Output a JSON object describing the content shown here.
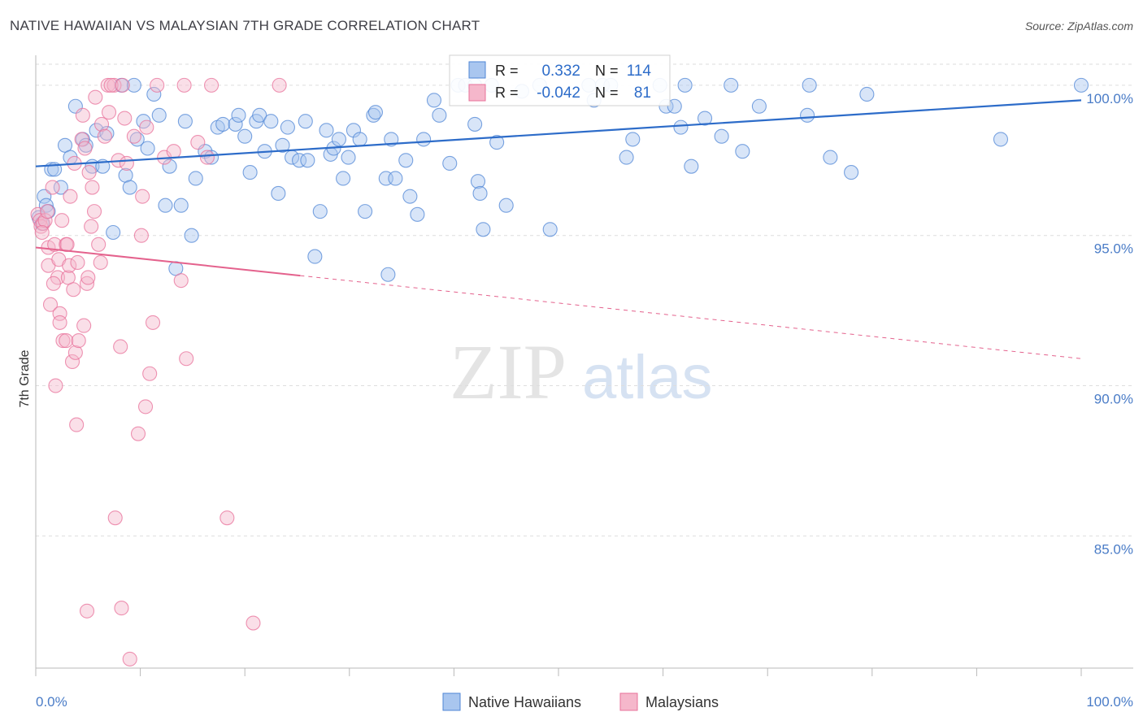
{
  "title": "NATIVE HAWAIIAN VS MALAYSIAN 7TH GRADE CORRELATION CHART",
  "source": "Source: ZipAtlas.com",
  "watermark": {
    "zip": "ZIP",
    "atlas": "atlas"
  },
  "colors": {
    "blue": "#4f86d6",
    "blue_fill": "#a9c6ef",
    "blue_line": "#2d6cc9",
    "pink": "#e8709a",
    "pink_fill": "#f5b7cb",
    "pink_line": "#e4628d",
    "axis_label": "#4a7cc7",
    "grid": "#dedede"
  },
  "legend_box": {
    "rows": [
      {
        "r_label": "R =",
        "r_value": "0.332",
        "n_label": "N =",
        "n_value": "114",
        "series": "blue"
      },
      {
        "r_label": "R =",
        "r_value": "-0.042",
        "n_label": "N =",
        "n_value": "81",
        "series": "pink"
      }
    ]
  },
  "bottom_legend": [
    {
      "label": "Native Hawaiians",
      "series": "blue"
    },
    {
      "label": "Malaysians",
      "series": "pink"
    }
  ],
  "chart_data": {
    "type": "scatter",
    "title": "NATIVE HAWAIIAN VS MALAYSIAN 7TH GRADE CORRELATION CHART",
    "xlabel": "",
    "ylabel": "7th Grade",
    "xlim": [
      0,
      100
    ],
    "ylim": [
      80.6,
      100.7
    ],
    "x_tick_labels": [
      "0.0%",
      "100.0%"
    ],
    "y_ticks": [
      {
        "value": 100,
        "label": "100.0%"
      },
      {
        "value": 95,
        "label": "95.0%"
      },
      {
        "value": 90,
        "label": "90.0%"
      },
      {
        "value": 85,
        "label": "85.0%"
      }
    ],
    "grid": "horizontal dashed",
    "legend_position": "top-center",
    "series": [
      {
        "name": "Native Hawaiians",
        "color": "#4f86d6",
        "trend": {
          "x": [
            0,
            100
          ],
          "y": [
            97.3,
            99.5
          ],
          "dashed_from": null
        },
        "points": [
          [
            0.3,
            95.6
          ],
          [
            0.6,
            95.4
          ],
          [
            0.8,
            96.3
          ],
          [
            1.0,
            96.0
          ],
          [
            1.2,
            95.8
          ],
          [
            1.5,
            97.2
          ],
          [
            1.8,
            97.2
          ],
          [
            2.4,
            96.6
          ],
          [
            2.8,
            98.0
          ],
          [
            3.3,
            97.6
          ],
          [
            3.8,
            99.3
          ],
          [
            4.5,
            98.2
          ],
          [
            4.8,
            98.0
          ],
          [
            5.4,
            97.3
          ],
          [
            5.8,
            98.5
          ],
          [
            6.4,
            97.3
          ],
          [
            6.8,
            98.4
          ],
          [
            7.4,
            95.1
          ],
          [
            8.2,
            100.0
          ],
          [
            8.6,
            97.0
          ],
          [
            9.0,
            96.6
          ],
          [
            9.4,
            100.0
          ],
          [
            9.7,
            98.2
          ],
          [
            10.3,
            98.8
          ],
          [
            10.7,
            97.9
          ],
          [
            11.3,
            99.7
          ],
          [
            11.8,
            99.0
          ],
          [
            12.4,
            96.0
          ],
          [
            12.8,
            97.3
          ],
          [
            13.4,
            93.9
          ],
          [
            13.9,
            96.0
          ],
          [
            14.3,
            98.8
          ],
          [
            14.9,
            95.0
          ],
          [
            15.3,
            96.9
          ],
          [
            16.2,
            97.8
          ],
          [
            16.8,
            97.6
          ],
          [
            17.4,
            98.6
          ],
          [
            17.9,
            98.7
          ],
          [
            19.1,
            98.7
          ],
          [
            19.4,
            99.0
          ],
          [
            20.0,
            98.3
          ],
          [
            20.5,
            97.1
          ],
          [
            21.1,
            98.8
          ],
          [
            21.4,
            99.0
          ],
          [
            21.9,
            97.8
          ],
          [
            22.5,
            98.8
          ],
          [
            23.2,
            96.4
          ],
          [
            23.6,
            98.0
          ],
          [
            24.1,
            98.6
          ],
          [
            24.5,
            97.6
          ],
          [
            25.2,
            97.5
          ],
          [
            25.8,
            98.8
          ],
          [
            26.0,
            97.5
          ],
          [
            26.7,
            94.3
          ],
          [
            27.2,
            95.8
          ],
          [
            27.8,
            98.5
          ],
          [
            28.2,
            97.7
          ],
          [
            28.5,
            97.9
          ],
          [
            29.0,
            98.2
          ],
          [
            29.4,
            96.9
          ],
          [
            29.9,
            97.6
          ],
          [
            30.4,
            98.5
          ],
          [
            31.0,
            98.2
          ],
          [
            31.5,
            95.8
          ],
          [
            32.3,
            99.0
          ],
          [
            32.5,
            99.1
          ],
          [
            33.5,
            96.9
          ],
          [
            33.7,
            93.7
          ],
          [
            34.0,
            98.2
          ],
          [
            34.4,
            96.9
          ],
          [
            35.4,
            97.5
          ],
          [
            35.8,
            96.3
          ],
          [
            36.5,
            95.7
          ],
          [
            37.1,
            98.2
          ],
          [
            38.1,
            99.5
          ],
          [
            38.6,
            99.0
          ],
          [
            39.6,
            97.4
          ],
          [
            40.4,
            100.0
          ],
          [
            41.1,
            100.0
          ],
          [
            42.0,
            98.7
          ],
          [
            42.3,
            96.8
          ],
          [
            42.5,
            96.4
          ],
          [
            42.8,
            95.2
          ],
          [
            43.6,
            100.0
          ],
          [
            44.1,
            98.1
          ],
          [
            45.0,
            96.0
          ],
          [
            46.5,
            99.8
          ],
          [
            48.2,
            100.0
          ],
          [
            49.2,
            95.2
          ],
          [
            52.9,
            100.0
          ],
          [
            53.4,
            99.5
          ],
          [
            54.2,
            100.0
          ],
          [
            55.0,
            100.0
          ],
          [
            56.5,
            97.6
          ],
          [
            57.1,
            98.2
          ],
          [
            59.7,
            100.0
          ],
          [
            60.3,
            99.3
          ],
          [
            61.1,
            99.3
          ],
          [
            61.7,
            98.6
          ],
          [
            62.1,
            100.0
          ],
          [
            62.7,
            97.3
          ],
          [
            64.0,
            98.9
          ],
          [
            65.6,
            98.3
          ],
          [
            67.6,
            97.8
          ],
          [
            69.2,
            99.3
          ],
          [
            73.8,
            99.0
          ],
          [
            74.0,
            100.0
          ],
          [
            76.0,
            97.6
          ],
          [
            78.0,
            97.1
          ],
          [
            79.5,
            99.7
          ],
          [
            92.3,
            98.2
          ],
          [
            100.0,
            100.0
          ],
          [
            66.5,
            100.0
          ],
          [
            42.0,
            100.0
          ]
        ]
      },
      {
        "name": "Malaysians",
        "color": "#e8709a",
        "trend": {
          "x": [
            0,
            100
          ],
          "y": [
            94.6,
            90.9
          ],
          "dashed_from": 25.3
        },
        "points": [
          [
            0.2,
            95.7
          ],
          [
            0.4,
            95.5
          ],
          [
            0.5,
            95.3
          ],
          [
            0.7,
            95.4
          ],
          [
            0.9,
            95.5
          ],
          [
            1.1,
            95.8
          ],
          [
            1.2,
            94.6
          ],
          [
            1.2,
            94.0
          ],
          [
            1.4,
            92.7
          ],
          [
            1.6,
            96.6
          ],
          [
            1.8,
            94.7
          ],
          [
            1.9,
            90.0
          ],
          [
            2.1,
            93.6
          ],
          [
            2.2,
            94.2
          ],
          [
            2.3,
            92.4
          ],
          [
            2.3,
            92.1
          ],
          [
            2.5,
            95.5
          ],
          [
            2.6,
            91.5
          ],
          [
            2.9,
            94.7
          ],
          [
            2.9,
            91.5
          ],
          [
            3.1,
            93.6
          ],
          [
            3.2,
            94.0
          ],
          [
            3.3,
            96.3
          ],
          [
            3.5,
            90.8
          ],
          [
            3.6,
            93.2
          ],
          [
            3.7,
            97.4
          ],
          [
            3.8,
            91.1
          ],
          [
            3.9,
            88.7
          ],
          [
            4.0,
            94.1
          ],
          [
            4.1,
            91.5
          ],
          [
            4.4,
            98.2
          ],
          [
            4.5,
            99.0
          ],
          [
            4.6,
            92.0
          ],
          [
            4.7,
            97.9
          ],
          [
            4.9,
            82.5
          ],
          [
            4.9,
            93.4
          ],
          [
            5.0,
            93.6
          ],
          [
            5.1,
            97.1
          ],
          [
            5.3,
            95.3
          ],
          [
            5.4,
            96.6
          ],
          [
            5.6,
            95.8
          ],
          [
            5.7,
            99.6
          ],
          [
            6.0,
            94.7
          ],
          [
            6.2,
            94.1
          ],
          [
            6.3,
            98.7
          ],
          [
            6.6,
            98.3
          ],
          [
            6.9,
            100.0
          ],
          [
            7.5,
            100.0
          ],
          [
            7.6,
            85.6
          ],
          [
            7.9,
            97.5
          ],
          [
            8.1,
            91.3
          ],
          [
            8.2,
            82.6
          ],
          [
            8.5,
            98.9
          ],
          [
            8.7,
            97.4
          ],
          [
            9.0,
            80.9
          ],
          [
            9.4,
            98.3
          ],
          [
            9.8,
            88.4
          ],
          [
            10.1,
            95.0
          ],
          [
            10.2,
            96.3
          ],
          [
            10.5,
            89.3
          ],
          [
            10.6,
            98.6
          ],
          [
            10.9,
            90.4
          ],
          [
            11.2,
            92.1
          ],
          [
            11.6,
            100.0
          ],
          [
            12.3,
            97.6
          ],
          [
            13.2,
            97.8
          ],
          [
            13.9,
            93.5
          ],
          [
            14.2,
            100.0
          ],
          [
            14.4,
            90.9
          ],
          [
            15.5,
            98.1
          ],
          [
            16.4,
            97.6
          ],
          [
            16.8,
            100.0
          ],
          [
            18.3,
            85.6
          ],
          [
            20.8,
            82.1
          ],
          [
            23.3,
            100.0
          ],
          [
            7.2,
            100.0
          ],
          [
            7.0,
            99.1
          ],
          [
            8.3,
            100.0
          ],
          [
            1.7,
            93.4
          ],
          [
            3.0,
            94.7
          ],
          [
            0.6,
            95.1
          ]
        ]
      }
    ]
  }
}
